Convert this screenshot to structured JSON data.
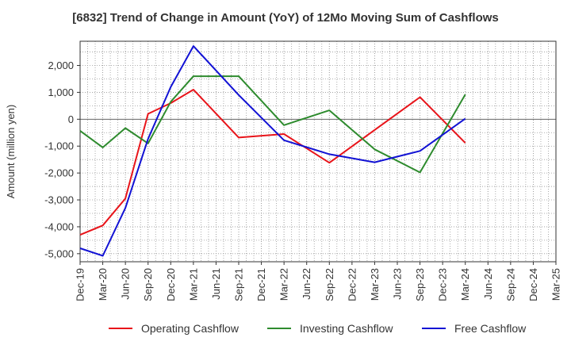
{
  "chart_data": {
    "type": "line",
    "title": "[6832]  Trend of Change in Amount (YoY) of 12Mo Moving Sum of Cashflows",
    "xlabel": "",
    "ylabel": "Amount (million yen)",
    "ylim": [
      -5300,
      2900
    ],
    "yticks": [
      2000,
      1000,
      0,
      -1000,
      -2000,
      -3000,
      -4000,
      -5000
    ],
    "ytick_labels": [
      "2,000",
      "1,000",
      "0",
      "-1,000",
      "-2,000",
      "-3,000",
      "-4,000",
      "-5,000"
    ],
    "categories": [
      "Dec-19",
      "Mar-20",
      "Jun-20",
      "Sep-20",
      "Dec-20",
      "Mar-21",
      "Jun-21",
      "Sep-21",
      "Dec-21",
      "Mar-22",
      "Jun-22",
      "Sep-22",
      "Dec-22",
      "Mar-23",
      "Jun-23",
      "Sep-23",
      "Dec-23",
      "Mar-24",
      "Jun-24",
      "Sep-24",
      "Dec-24",
      "Mar-25"
    ],
    "grid": true,
    "legend_position": "bottom",
    "series": [
      {
        "name": "Operating Cashflow",
        "color": "#e8141a",
        "values": [
          -4300,
          -3950,
          -2950,
          200,
          600,
          1100,
          null,
          -680,
          null,
          -550,
          null,
          -1620,
          null,
          null,
          null,
          820,
          null,
          -880,
          null,
          null,
          null,
          null
        ]
      },
      {
        "name": "Investing Cashflow",
        "color": "#2e8b2e",
        "values": [
          -430,
          -1050,
          -330,
          -900,
          650,
          1600,
          null,
          1600,
          null,
          -220,
          null,
          330,
          null,
          -1120,
          null,
          -1980,
          null,
          920,
          null,
          null,
          null,
          null
        ]
      },
      {
        "name": "Free Cashflow",
        "color": "#1212d4",
        "values": [
          -4800,
          -5080,
          -3300,
          -730,
          1200,
          2720,
          null,
          900,
          null,
          -780,
          null,
          -1300,
          null,
          -1600,
          null,
          -1180,
          null,
          20,
          null,
          null,
          null,
          null
        ]
      }
    ]
  }
}
